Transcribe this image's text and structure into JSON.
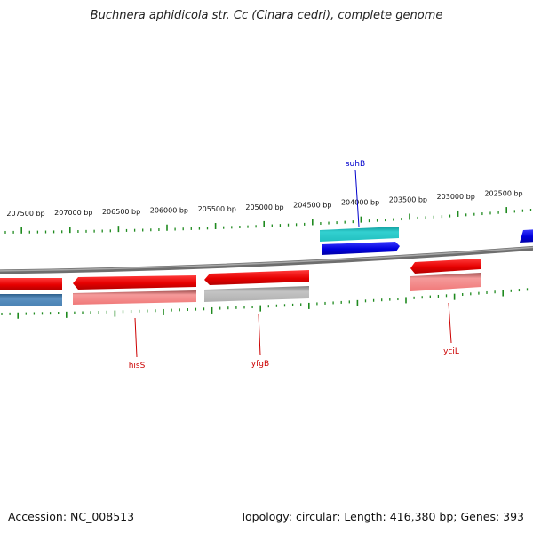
{
  "title": "Buchnera aphidicola str. Cc (Cinara cedri), complete genome",
  "footer": {
    "accession": "Accession: NC_008513",
    "summary": "Topology: circular; Length: 416,380 bp; Genes: 393"
  },
  "scale": {
    "labels": [
      "207500 bp",
      "207000 bp",
      "206500 bp",
      "206000 bp",
      "205500 bp",
      "205000 bp",
      "204500 bp",
      "204000 bp",
      "203500 bp",
      "203000 bp",
      "202500 bp"
    ]
  },
  "genes": [
    {
      "name": "suhB",
      "color": "#0000cc"
    },
    {
      "name": "hisS",
      "color": "#cc0000"
    },
    {
      "name": "yfgB",
      "color": "#cc0000"
    },
    {
      "name": "yciL",
      "color": "#cc0000"
    }
  ],
  "colors": {
    "cds": "#e60000",
    "cds_light": "#ee8888",
    "cds_blue": "#0000dd",
    "cyan": "#22c4c4",
    "steel": "#4a82b4",
    "grey": "#b4b4b4",
    "backbone": "#8c8c8c",
    "ticks": "#1f8a1f"
  }
}
